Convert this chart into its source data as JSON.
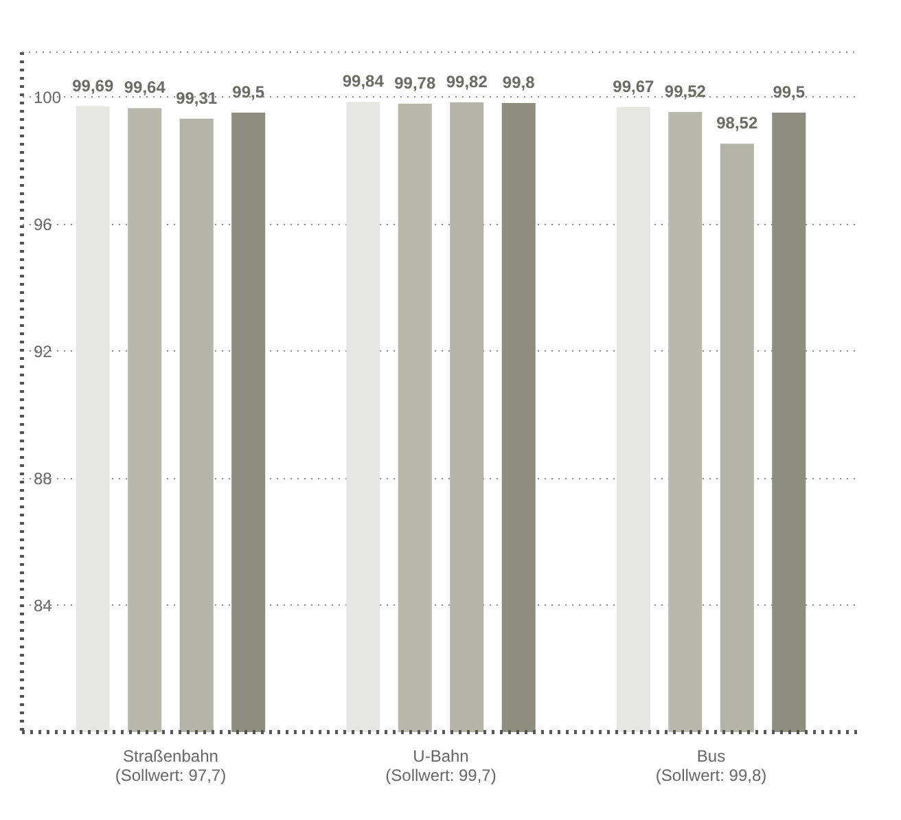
{
  "chart_data": {
    "type": "bar",
    "categories": [
      "Straßenbahn\n(Sollwert: 97,7)",
      "U-Bahn\n(Sollwert: 99,7)",
      "Bus\n(Sollwert: 99,8)"
    ],
    "series": [
      {
        "color": "#e6e7e2",
        "values": [
          99.69,
          99.84,
          99.67
        ],
        "value_labels": [
          "99,69",
          "99,84",
          "99,67"
        ]
      },
      {
        "color": "#b8b9ac",
        "values": [
          99.64,
          99.78,
          99.52
        ],
        "value_labels": [
          "99,64",
          "99,78",
          "99,52"
        ]
      },
      {
        "color": "#b3b3a8",
        "values": [
          99.31,
          99.82,
          98.52
        ],
        "value_labels": [
          "99,31",
          "99,82",
          "98,52"
        ]
      },
      {
        "color": "#8e8d7f",
        "values": [
          99.5,
          99.8,
          99.5
        ],
        "value_labels": [
          "99,5",
          "99,8",
          "99,5"
        ]
      }
    ],
    "ylim": [
      80,
      101.4
    ],
    "yticks": [
      84,
      88,
      92,
      96,
      100
    ],
    "grid": "y",
    "legend": false
  }
}
